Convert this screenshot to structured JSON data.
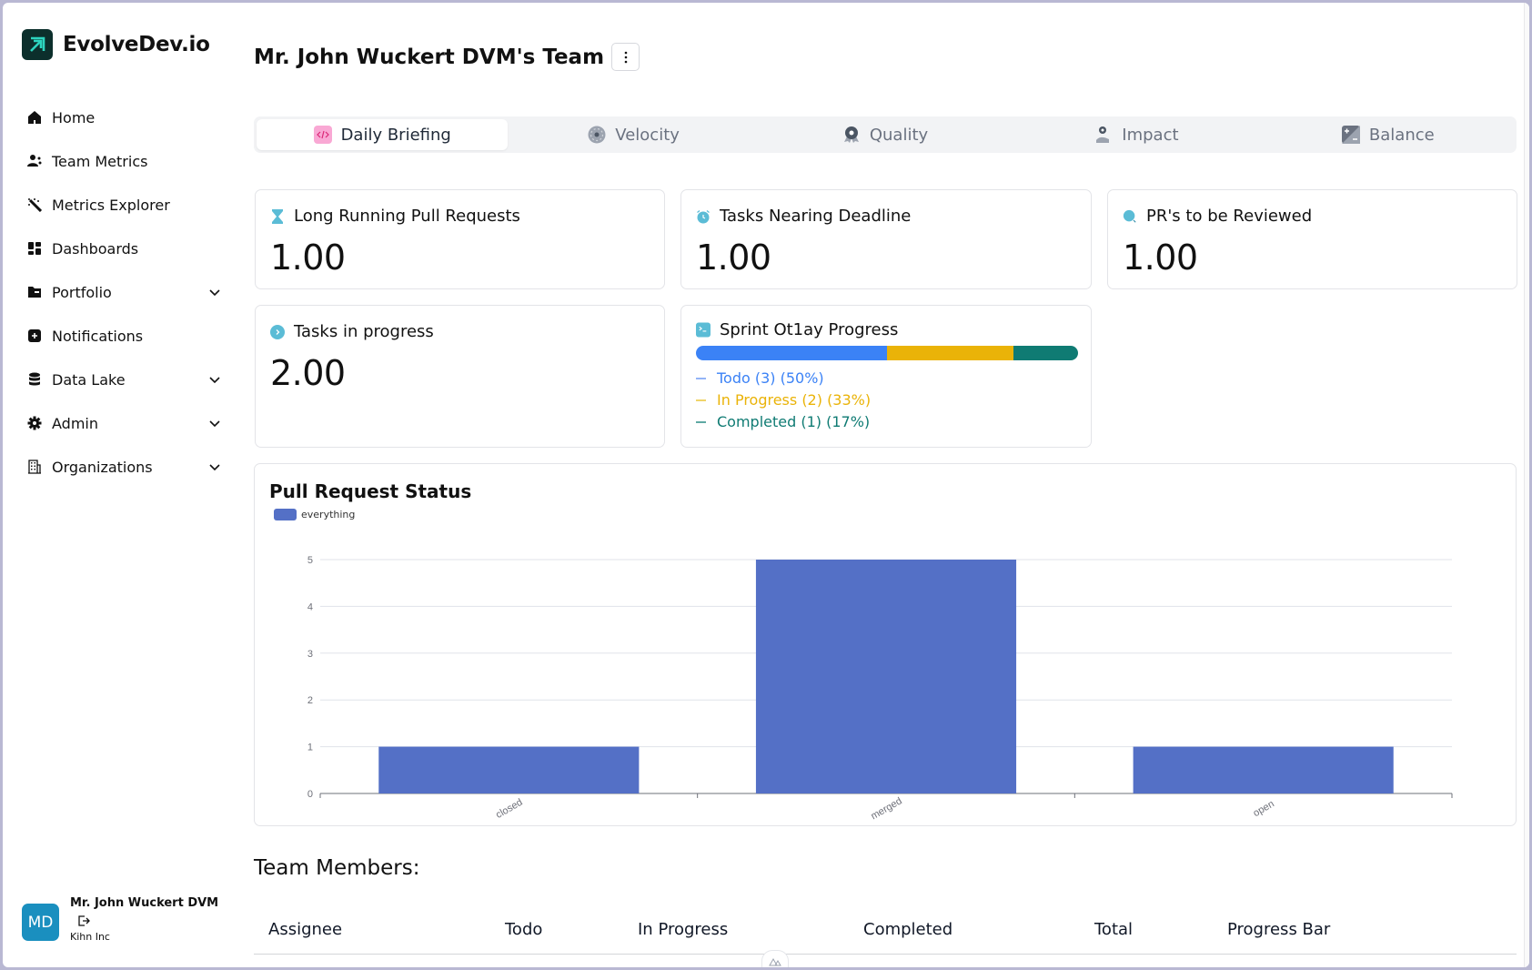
{
  "app": {
    "name": "EvolveDev.io"
  },
  "sidebar": {
    "items": [
      {
        "label": "Home",
        "icon": "home-icon",
        "expandable": false
      },
      {
        "label": "Team Metrics",
        "icon": "team-icon",
        "expandable": false
      },
      {
        "label": "Metrics Explorer",
        "icon": "magic-wand-icon",
        "expandable": false
      },
      {
        "label": "Dashboards",
        "icon": "dashboard-icon",
        "expandable": false
      },
      {
        "label": "Portfolio",
        "icon": "folder-icon",
        "expandable": true
      },
      {
        "label": "Notifications",
        "icon": "notification-icon",
        "expandable": false
      },
      {
        "label": "Data Lake",
        "icon": "database-icon",
        "expandable": true
      },
      {
        "label": "Admin",
        "icon": "gear-icon",
        "expandable": true
      },
      {
        "label": "Organizations",
        "icon": "building-icon",
        "expandable": true
      }
    ],
    "user": {
      "initials": "MD",
      "name": "Mr. John Wuckert DVM",
      "org": "Kihn Inc"
    }
  },
  "header": {
    "title": "Mr. John Wuckert DVM's Team"
  },
  "tabs": [
    {
      "label": "Daily Briefing",
      "icon": "code-icon",
      "active": true
    },
    {
      "label": "Velocity",
      "icon": "speedometer-icon",
      "active": false
    },
    {
      "label": "Quality",
      "icon": "award-icon",
      "active": false
    },
    {
      "label": "Impact",
      "icon": "impact-icon",
      "active": false
    },
    {
      "label": "Balance",
      "icon": "balance-icon",
      "active": false
    }
  ],
  "metrics": [
    {
      "label": "Long Running Pull Requests",
      "value": "1.00",
      "icon": "hourglass-icon"
    },
    {
      "label": "Tasks Nearing Deadline",
      "value": "1.00",
      "icon": "alarm-clock-icon"
    },
    {
      "label": "PR's to be Reviewed",
      "value": "1.00",
      "icon": "magnifier-icon"
    },
    {
      "label": "Tasks in progress",
      "value": "2.00",
      "icon": "chevron-circle-icon"
    }
  ],
  "sprint": {
    "title": "Sprint Ot1ay Progress",
    "segments": [
      {
        "label": "Todo (3) (50%)",
        "percent": 50,
        "color": "#3b82f6"
      },
      {
        "label": "In Progress (2) (33%)",
        "percent": 33,
        "color": "#eab308"
      },
      {
        "label": "Completed (1) (17%)",
        "percent": 17,
        "color": "#0f7b73"
      }
    ]
  },
  "chart_data": {
    "type": "bar",
    "title": "Pull Request Status",
    "categories": [
      "closed",
      "merged",
      "open"
    ],
    "series": [
      {
        "name": "everything",
        "values": [
          1,
          5,
          1
        ],
        "color": "#5470c6"
      }
    ],
    "xlabel": "",
    "ylabel": "",
    "ylim": [
      0,
      5
    ],
    "yticks": [
      0,
      1,
      2,
      3,
      4,
      5
    ],
    "grid": true,
    "legend": "top-left"
  },
  "team": {
    "title": "Team Members:",
    "columns": [
      "Assignee",
      "Todo",
      "In Progress",
      "Completed",
      "Total",
      "Progress Bar"
    ]
  }
}
